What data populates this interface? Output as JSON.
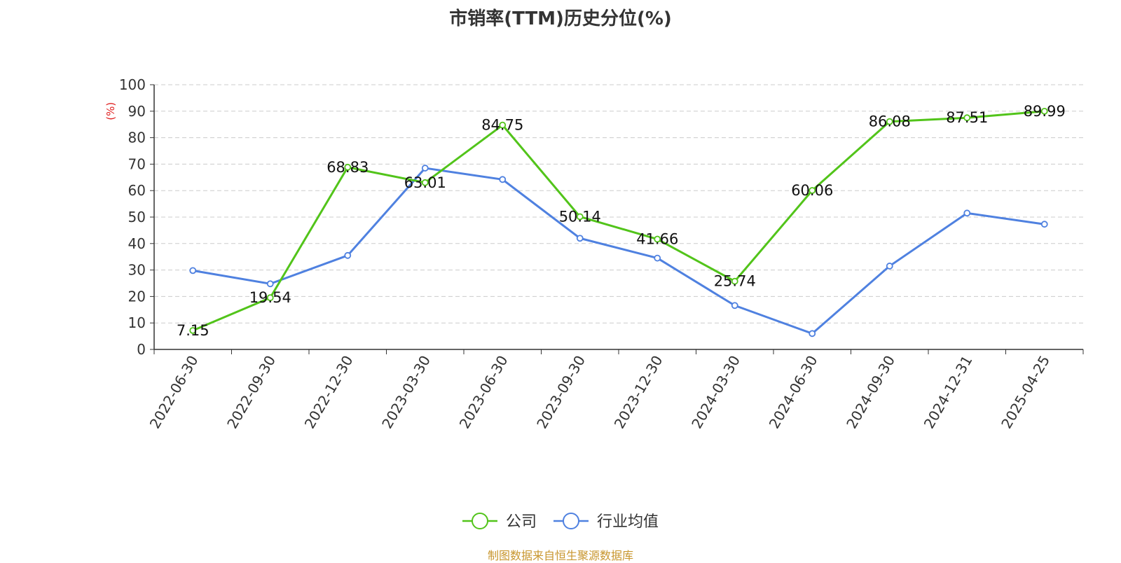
{
  "chart_data": {
    "type": "line",
    "title": "市销率(TTM)历史分位(%)",
    "ylabel": "(%)",
    "xlabel": "",
    "ylim": [
      0,
      100
    ],
    "yticks": [
      0,
      10,
      20,
      30,
      40,
      50,
      60,
      70,
      80,
      90,
      100
    ],
    "grid": true,
    "legend_position": "bottom-center",
    "categories": [
      "2022-06-30",
      "2022-09-30",
      "2022-12-30",
      "2023-03-30",
      "2023-06-30",
      "2023-09-30",
      "2023-12-30",
      "2024-03-30",
      "2024-06-30",
      "2024-09-30",
      "2024-12-31",
      "2025-04-25"
    ],
    "series": [
      {
        "name": "公司",
        "color": "#52c41a",
        "values": [
          7.15,
          19.54,
          68.83,
          63.01,
          84.75,
          50.14,
          41.66,
          25.74,
          60.06,
          86.08,
          87.51,
          89.99
        ],
        "labels": [
          "7.15",
          "19.54",
          "68.83",
          "63.01",
          "84.75",
          "50.14",
          "41.66",
          "25.74",
          "60.06",
          "86.08",
          "87.51",
          "89.99"
        ]
      },
      {
        "name": "行业均值",
        "color": "#4f81e0",
        "values": [
          29.8,
          24.8,
          35.5,
          68.5,
          64.2,
          42.0,
          34.5,
          16.6,
          6.0,
          31.5,
          51.5,
          47.3
        ]
      }
    ]
  },
  "footer": {
    "source": "制图数据来自恒生聚源数据库"
  }
}
